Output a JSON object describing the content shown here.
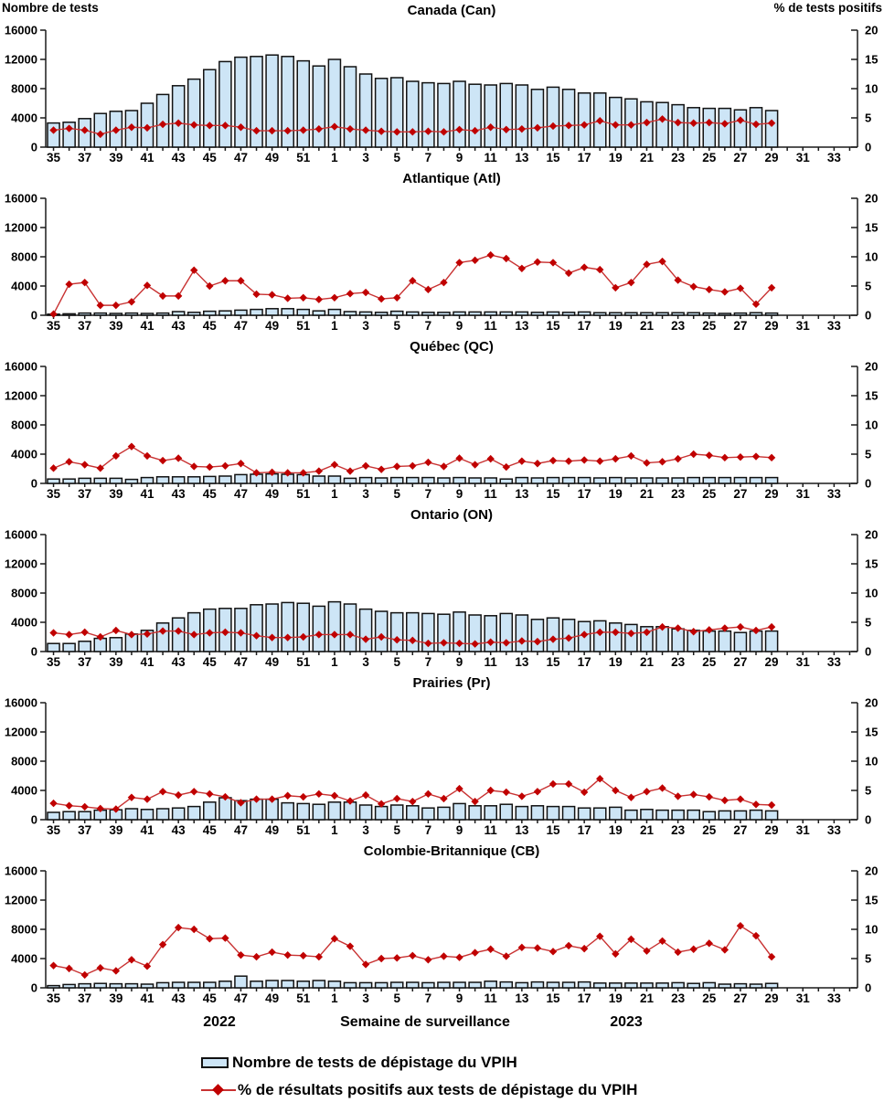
{
  "footer": {
    "year_left": "2022",
    "axis_title": "Semaine de surveillance",
    "year_right": "2023"
  },
  "legend": {
    "bar_label": "Nombre de tests de dépistage du VPIH",
    "line_label": "% de résultats positifs aux tests de dépistage du VPIH"
  },
  "colors": {
    "bar_fill": "#CDE5F6",
    "bar_stroke": "#111111",
    "line": "#C83232",
    "marker": "#C00000",
    "axis": "#1a1a1a",
    "text": "#000000",
    "background": "#FFFFFF"
  },
  "chart_data": {
    "type": "bar",
    "subtype": "multi-panel bar+line combo",
    "x_axis": {
      "title": "Semaine de surveillance",
      "year_left": "2022",
      "year_right": "2023",
      "week_sequence_note": "weeks 35-52 of 2022 then weeks 1-34 of 2023; data plotted for weeks 35-52 and 1-29",
      "tick_label_weeks": [
        35,
        37,
        39,
        41,
        43,
        45,
        47,
        49,
        51,
        1,
        3,
        5,
        7,
        9,
        11,
        13,
        15,
        17,
        19,
        21,
        23,
        25,
        27,
        29,
        31,
        33
      ]
    },
    "y_left": {
      "title": "Nombre de tests",
      "min": 0,
      "max": 16000,
      "ticks": [
        0,
        4000,
        8000,
        12000,
        16000
      ]
    },
    "y_right": {
      "title": "% de tests positifs",
      "min": 0,
      "max": 20,
      "ticks": [
        0,
        5,
        10,
        15,
        20
      ]
    },
    "legend": [
      "Nombre de tests de dépistage du VPIH",
      "% de résultats positifs aux tests de dépistage du VPIH"
    ],
    "weeks": [
      35,
      36,
      37,
      38,
      39,
      40,
      41,
      42,
      43,
      44,
      45,
      46,
      47,
      48,
      49,
      50,
      51,
      52,
      1,
      2,
      3,
      4,
      5,
      6,
      7,
      8,
      9,
      10,
      11,
      12,
      13,
      14,
      15,
      16,
      17,
      18,
      19,
      20,
      21,
      22,
      23,
      24,
      25,
      26,
      27,
      28,
      29
    ],
    "panels": [
      {
        "id": "can",
        "title": "Canada (Can)",
        "tests": [
          3300,
          3400,
          3900,
          4600,
          4900,
          5000,
          6000,
          7200,
          8400,
          9300,
          10600,
          11700,
          12300,
          12400,
          12600,
          12400,
          11800,
          11100,
          12000,
          11000,
          10000,
          9400,
          9500,
          9000,
          8800,
          8700,
          9000,
          8600,
          8500,
          8700,
          8500,
          7900,
          8200,
          7900,
          7400,
          7400,
          6800,
          6600,
          6200,
          6100,
          5800,
          5400,
          5300,
          5300,
          5100,
          5400,
          5000
        ],
        "pct_positive": [
          2.9,
          3.2,
          2.9,
          2.2,
          2.9,
          3.4,
          3.3,
          3.9,
          4.1,
          3.8,
          3.7,
          3.7,
          3.4,
          2.8,
          2.8,
          2.8,
          2.9,
          3.1,
          3.5,
          3.1,
          2.9,
          2.7,
          2.6,
          2.6,
          2.7,
          2.6,
          3.0,
          2.8,
          3.4,
          3.0,
          3.1,
          3.3,
          3.6,
          3.7,
          3.8,
          4.5,
          3.8,
          3.8,
          4.2,
          4.8,
          4.2,
          4.1,
          4.2,
          4.0,
          4.6,
          3.9,
          4.1
        ]
      },
      {
        "id": "atl",
        "title": "Atlantique (Atl)",
        "tests": [
          150,
          200,
          300,
          300,
          250,
          300,
          250,
          300,
          500,
          400,
          550,
          600,
          700,
          800,
          900,
          900,
          800,
          600,
          800,
          500,
          450,
          400,
          550,
          450,
          400,
          400,
          450,
          450,
          450,
          450,
          450,
          400,
          450,
          400,
          450,
          350,
          350,
          350,
          350,
          350,
          350,
          350,
          300,
          250,
          300,
          350,
          300
        ],
        "pct_positive": [
          0.2,
          5.3,
          5.6,
          1.7,
          1.7,
          2.3,
          5.1,
          3.3,
          3.3,
          7.7,
          5.0,
          5.9,
          5.9,
          3.6,
          3.5,
          2.9,
          3.0,
          2.7,
          3.0,
          3.7,
          3.9,
          2.8,
          3.0,
          5.9,
          4.4,
          5.6,
          9.0,
          9.4,
          10.3,
          9.7,
          8.0,
          9.1,
          9.0,
          7.2,
          8.2,
          7.8,
          4.7,
          5.6,
          8.7,
          9.2,
          6.0,
          4.9,
          4.4,
          4.0,
          4.6,
          1.9,
          4.7
        ]
      },
      {
        "id": "qc",
        "title": "Québec (QC)",
        "tests": [
          600,
          600,
          700,
          700,
          700,
          550,
          800,
          900,
          900,
          900,
          950,
          1000,
          1200,
          1250,
          1300,
          1250,
          1200,
          1000,
          1000,
          700,
          800,
          750,
          800,
          800,
          800,
          750,
          800,
          750,
          750,
          600,
          800,
          750,
          800,
          800,
          800,
          750,
          800,
          750,
          750,
          750,
          750,
          800,
          800,
          800,
          800,
          800,
          800
        ],
        "pct_positive": [
          2.6,
          3.7,
          3.2,
          2.6,
          4.7,
          6.3,
          4.7,
          3.9,
          4.3,
          2.9,
          2.8,
          3.0,
          3.4,
          1.8,
          1.9,
          1.8,
          1.8,
          2.1,
          3.2,
          2.1,
          3.0,
          2.4,
          2.9,
          3.0,
          3.6,
          2.9,
          4.3,
          3.2,
          4.2,
          2.8,
          3.8,
          3.4,
          3.9,
          3.8,
          4.0,
          3.8,
          4.2,
          4.7,
          3.5,
          3.7,
          4.2,
          5.0,
          4.8,
          4.4,
          4.5,
          4.6,
          4.4
        ]
      },
      {
        "id": "on",
        "title": "Ontario (ON)",
        "tests": [
          1100,
          1100,
          1400,
          1800,
          1900,
          2400,
          2900,
          3900,
          4600,
          5300,
          5800,
          5900,
          5900,
          6400,
          6500,
          6700,
          6600,
          6200,
          6800,
          6500,
          5800,
          5500,
          5300,
          5300,
          5200,
          5100,
          5400,
          5000,
          4900,
          5200,
          5000,
          4400,
          4600,
          4400,
          4100,
          4200,
          3900,
          3700,
          3400,
          3400,
          3100,
          2900,
          2800,
          2800,
          2600,
          2800,
          2800
        ],
        "pct_positive": [
          3.2,
          2.9,
          3.3,
          2.5,
          3.6,
          2.9,
          3.0,
          3.5,
          3.5,
          2.9,
          3.2,
          3.3,
          3.2,
          2.7,
          2.4,
          2.4,
          2.5,
          2.9,
          2.9,
          2.9,
          2.1,
          2.5,
          2.0,
          1.9,
          1.4,
          1.5,
          1.4,
          1.3,
          1.6,
          1.5,
          1.8,
          1.7,
          2.1,
          2.3,
          2.9,
          3.3,
          3.3,
          3.1,
          3.3,
          4.2,
          4.0,
          3.4,
          3.7,
          4.0,
          4.2,
          3.6,
          4.2
        ]
      },
      {
        "id": "pr",
        "title": "Prairies (Pr)",
        "tests": [
          1000,
          1100,
          1100,
          1300,
          1350,
          1500,
          1400,
          1500,
          1600,
          1800,
          2400,
          3000,
          2600,
          2800,
          2800,
          2300,
          2200,
          2100,
          2400,
          2400,
          2000,
          1800,
          2000,
          1900,
          1600,
          1700,
          2200,
          1900,
          1900,
          2100,
          1800,
          1900,
          1800,
          1800,
          1600,
          1600,
          1700,
          1300,
          1400,
          1300,
          1300,
          1300,
          1100,
          1200,
          1200,
          1300,
          1200
        ],
        "pct_positive": [
          2.8,
          2.4,
          2.2,
          1.9,
          1.8,
          3.8,
          3.5,
          4.8,
          4.2,
          4.8,
          4.4,
          3.9,
          2.9,
          3.5,
          3.5,
          4.1,
          3.9,
          4.4,
          4.1,
          3.2,
          4.2,
          2.7,
          3.6,
          3.1,
          4.4,
          3.6,
          5.3,
          3.1,
          5.0,
          4.7,
          4.0,
          4.8,
          6.1,
          6.1,
          4.7,
          7.0,
          5.0,
          3.8,
          4.8,
          5.4,
          4.0,
          4.3,
          3.9,
          3.3,
          3.5,
          2.6,
          2.5
        ]
      },
      {
        "id": "cb",
        "title": "Colombie-Britannique (CB)",
        "tests": [
          300,
          450,
          550,
          600,
          550,
          550,
          500,
          700,
          750,
          750,
          750,
          900,
          1600,
          900,
          1000,
          1000,
          900,
          1000,
          900,
          700,
          700,
          700,
          750,
          750,
          700,
          750,
          750,
          750,
          900,
          800,
          700,
          800,
          750,
          750,
          800,
          650,
          650,
          650,
          650,
          650,
          700,
          600,
          700,
          500,
          550,
          500,
          600
        ],
        "pct_positive": [
          3.8,
          3.3,
          2.2,
          3.4,
          2.9,
          4.8,
          3.7,
          7.4,
          10.3,
          10.0,
          8.4,
          8.5,
          5.6,
          5.3,
          6.1,
          5.6,
          5.5,
          5.3,
          8.4,
          7.1,
          4.0,
          5.0,
          5.1,
          5.5,
          4.8,
          5.4,
          5.2,
          6.0,
          6.6,
          5.4,
          6.9,
          6.8,
          6.2,
          7.2,
          6.7,
          8.8,
          5.8,
          8.3,
          6.3,
          8.0,
          6.1,
          6.6,
          7.6,
          6.5,
          10.6,
          8.9,
          5.3
        ]
      }
    ]
  }
}
